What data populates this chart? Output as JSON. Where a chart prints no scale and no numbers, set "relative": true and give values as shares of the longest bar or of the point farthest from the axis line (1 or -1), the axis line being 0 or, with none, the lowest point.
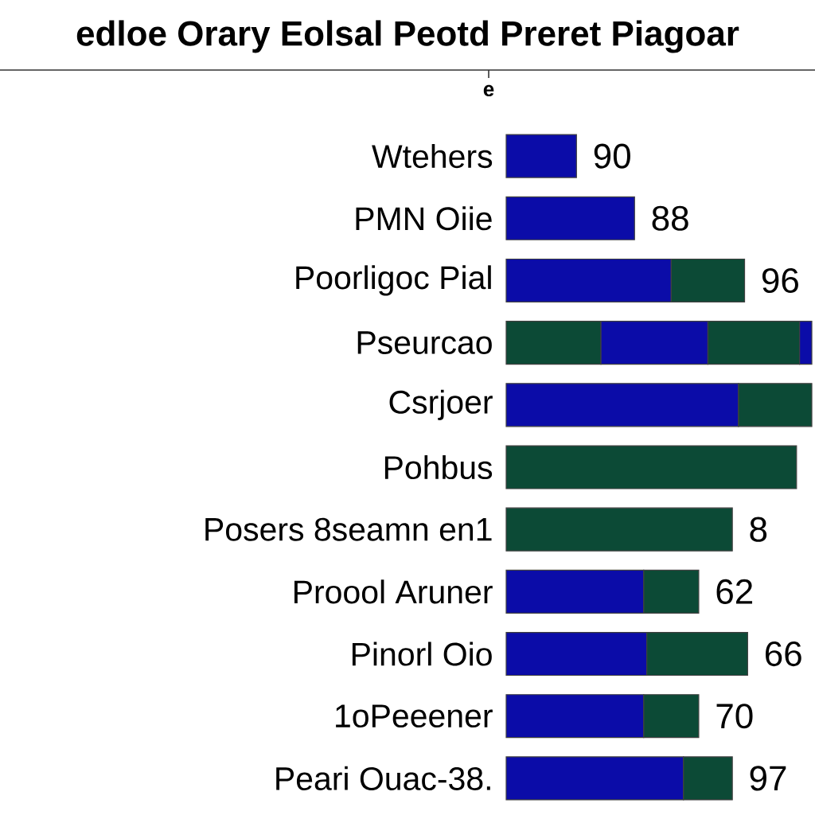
{
  "chart_data": {
    "type": "bar",
    "orientation": "horizontal",
    "stacked": true,
    "relative": true,
    "title": "edloe Orary Eolsal Peotd Preret Piagoar",
    "categories": [
      "Wtehers",
      "PMN Oiie",
      "Poorligoc Pial",
      "Pseurcao",
      "Csrjoer",
      "Pohbus",
      "Posers 8seamn en1",
      "Proool Aruner",
      "Pinorl Oio",
      "1oPeeener",
      "Peari Ouac-38."
    ],
    "series": [
      {
        "colors": [
          "#0b0ca8",
          "#0b0ca8",
          "#0b0ca8",
          "#0c4a36",
          "#0b0ca8",
          "#0c4a36",
          "#0c4a36",
          "#0b0ca8",
          "#0b0ca8",
          "#0b0ca8",
          "#0b0ca8"
        ],
        "values": [
          0.23,
          0.42,
          0.54,
          0.31,
          0.76,
          0.95,
          0.74,
          0.45,
          0.46,
          0.45,
          0.58
        ]
      },
      {
        "colors": [
          null,
          null,
          "#0c4a36",
          "#0b0ca8",
          "#0c4a36",
          null,
          null,
          "#0c4a36",
          "#0c4a36",
          "#0c4a36",
          "#0c4a36"
        ],
        "values": [
          null,
          null,
          0.24,
          0.35,
          0.24,
          null,
          null,
          0.18,
          0.33,
          0.18,
          0.16
        ]
      },
      {
        "colors": [
          null,
          null,
          null,
          "#0c4a36",
          null,
          null,
          null,
          null,
          null,
          null,
          null
        ],
        "values": [
          null,
          null,
          null,
          0.3,
          null,
          null,
          null,
          null,
          null,
          null,
          null
        ]
      },
      {
        "colors": [
          null,
          null,
          null,
          "#0b0ca8",
          null,
          null,
          null,
          null,
          null,
          null,
          null
        ],
        "values": [
          null,
          null,
          null,
          0.04,
          null,
          null,
          null,
          null,
          null,
          null,
          null
        ]
      }
    ],
    "annotations": [
      "e",
      {
        "text": "90",
        "x": 0.23,
        "y": "Wtehers"
      },
      {
        "text": "88",
        "x": 0.42,
        "y": "PMN Oiie"
      },
      {
        "text": "96",
        "x": 0.78,
        "y": "Poorligoc Pial"
      },
      {
        "text": "8",
        "x": 0.74,
        "y": "Posers 8seamn en1"
      },
      {
        "text": "62",
        "x": 0.63,
        "y": "Proool Aruner"
      },
      {
        "text": "66",
        "x": 0.79,
        "y": "Pinorl Oio"
      },
      {
        "text": "70",
        "x": 0.63,
        "y": "1oPeeener"
      },
      {
        "text": "97",
        "x": 0.74,
        "y": "Peari Ouac-38."
      }
    ]
  }
}
